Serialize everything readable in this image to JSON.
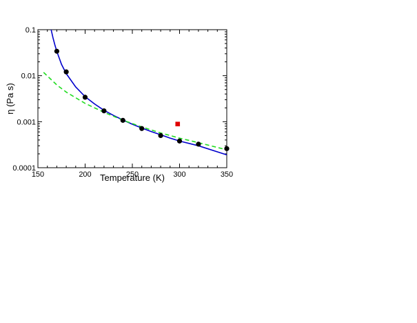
{
  "chart_data": {
    "type": "scatter",
    "xlabel": "Temperature (K)",
    "ylabel": "η (Pa s)",
    "xlim": [
      150,
      350
    ],
    "ylim": [
      0.0001,
      0.1
    ],
    "y_scale": "log",
    "x_ticks": [
      {
        "value": 150,
        "label": "150"
      },
      {
        "value": 200,
        "label": "200"
      },
      {
        "value": 250,
        "label": "250"
      },
      {
        "value": 300,
        "label": "300"
      },
      {
        "value": 350,
        "label": "350"
      }
    ],
    "y_ticks": [
      {
        "value": 0.0001,
        "label": "0.0001"
      },
      {
        "value": 0.001,
        "label": "0.001"
      },
      {
        "value": 0.01,
        "label": "0.01"
      },
      {
        "value": 0.1,
        "label": "0.1"
      }
    ],
    "grid": false,
    "legend": "none",
    "series": [
      {
        "marker": "circle",
        "color": "#000000",
        "x": [
          170,
          180,
          200,
          220,
          240,
          260,
          280,
          300,
          320,
          350
        ],
        "y": [
          0.034,
          0.0121,
          0.0034,
          0.00172,
          0.00107,
          0.00071,
          0.0005,
          0.00038,
          0.000325,
          0.00026
        ]
      },
      {
        "marker": "square",
        "color": "#e00000",
        "x": [
          298
        ],
        "y": [
          0.00089
        ]
      },
      {
        "line": "solid",
        "color": "#0000cc",
        "x": [
          164,
          166,
          168,
          170,
          175,
          180,
          190,
          200,
          210,
          220,
          230,
          240,
          250,
          260,
          270,
          280,
          290,
          300,
          320,
          350
        ],
        "y": [
          0.1,
          0.0663,
          0.0464,
          0.0338,
          0.0176,
          0.0111,
          0.0057,
          0.0035,
          0.00243,
          0.00177,
          0.00137,
          0.00109,
          0.00088,
          0.00073,
          0.00061,
          0.00052,
          0.00044,
          0.00038,
          0.0003,
          0.00019
        ]
      },
      {
        "line": "dashed",
        "color": "#22dd22",
        "x": [
          156,
          170,
          180,
          200,
          220,
          240,
          260,
          280,
          300,
          320,
          350
        ],
        "y": [
          0.0118,
          0.0063,
          0.0044,
          0.0025,
          0.0016,
          0.00108,
          0.00077,
          0.00057,
          0.00044,
          0.00035,
          0.000245
        ]
      }
    ]
  }
}
